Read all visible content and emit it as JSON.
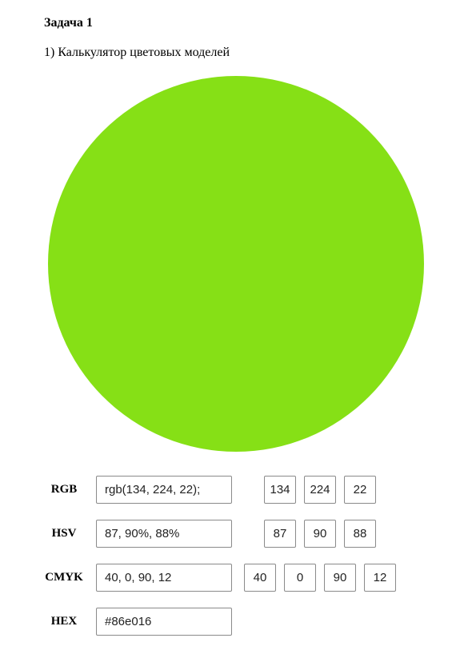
{
  "header": {
    "title": "Задача 1",
    "subtitle": "1) Калькулятор цветовых моделей"
  },
  "preview": {
    "color": "#86e016"
  },
  "rgb": {
    "label": "RGB",
    "text": "rgb(134, 224, 22);",
    "r": "134",
    "g": "224",
    "b": "22"
  },
  "hsv": {
    "label": "HSV",
    "text": "87, 90%, 88%",
    "h": "87",
    "s": "90",
    "v": "88"
  },
  "cmyk": {
    "label": "CMYK",
    "text": "40, 0, 90, 12",
    "c": "40",
    "m": "0",
    "y": "90",
    "k": "12"
  },
  "hex": {
    "label": "HEX",
    "text": "#86e016"
  }
}
